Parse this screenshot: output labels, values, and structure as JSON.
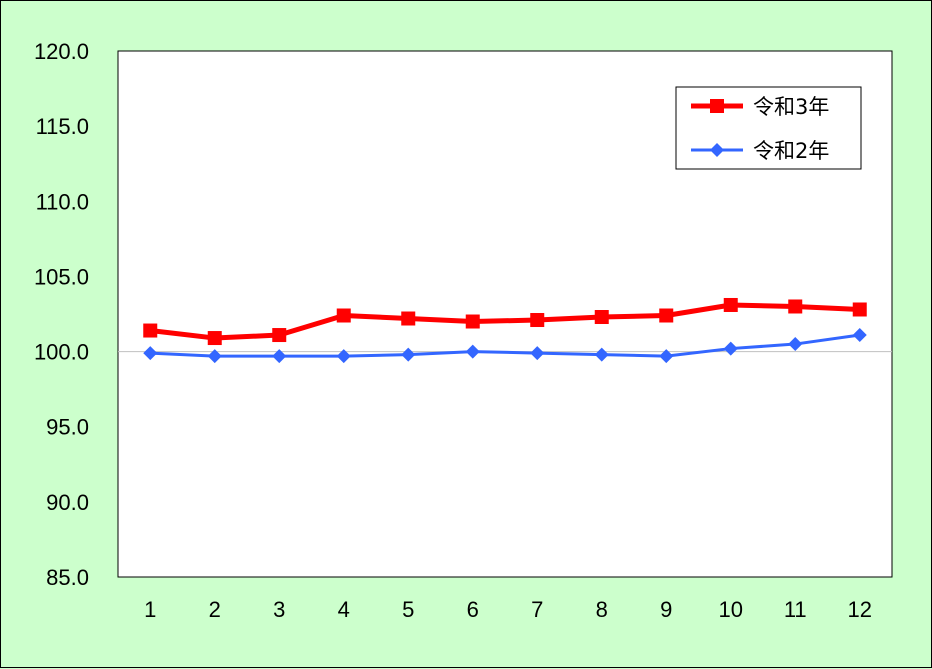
{
  "chart_data": {
    "type": "line",
    "categories": [
      "1",
      "2",
      "3",
      "4",
      "5",
      "6",
      "7",
      "8",
      "9",
      "10",
      "11",
      "12"
    ],
    "ylim": [
      85.0,
      120.0
    ],
    "y_ticks": [
      "120.0",
      "115.0",
      "110.0",
      "105.0",
      "100.0",
      "95.0",
      "90.0",
      "85.0"
    ],
    "y_tick_values": [
      120,
      115,
      110,
      105,
      100,
      95,
      90,
      85
    ],
    "reference_line": 100.0,
    "grid": false,
    "legend_position": "top-right",
    "series": [
      {
        "name": "令和3年",
        "color": "#ff0000",
        "marker": "square",
        "values": [
          101.4,
          100.9,
          101.1,
          102.4,
          102.2,
          102.0,
          102.1,
          102.3,
          102.4,
          103.1,
          103.0,
          102.8
        ]
      },
      {
        "name": "令和2年",
        "color": "#3366ff",
        "marker": "diamond",
        "values": [
          99.9,
          99.7,
          99.7,
          99.7,
          99.8,
          100.0,
          99.9,
          99.8,
          99.7,
          100.2,
          100.5,
          101.1
        ]
      }
    ],
    "colors": {
      "background": "#ccffcc",
      "plot_area": "#ffffff",
      "reference_line": "#c0c0c0"
    }
  }
}
